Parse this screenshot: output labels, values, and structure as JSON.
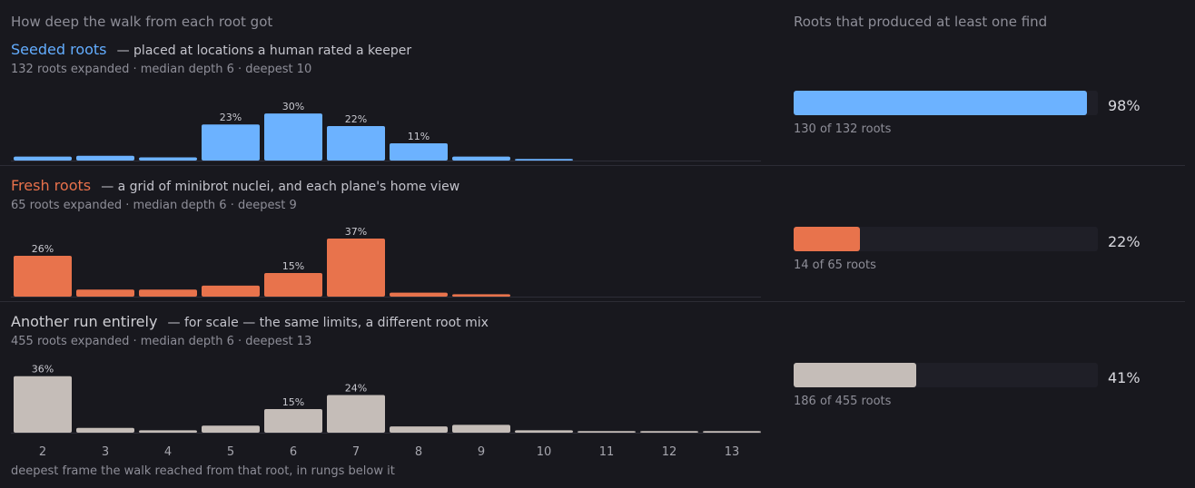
{
  "left_heading": "How deep the walk from each root got",
  "right_heading": "Roots that produced at least one find",
  "rows": [
    {
      "title": "Seeded roots",
      "title_color": "#63adff",
      "desc": "— placed at locations a human rated a keeper",
      "meta": "132 roots expanded · median depth 6 · deepest 10",
      "bar_color": "#6cb2ff",
      "pct_text": "98%",
      "pct_value": 0.98,
      "pct_note": "130 of 132 roots"
    },
    {
      "title": "Fresh roots",
      "title_color": "#e8714b",
      "desc": "— a grid of minibrot nuclei, and each plane's home view",
      "meta": "65 roots expanded · median depth 6 · deepest 9",
      "bar_color": "#e8734c",
      "pct_text": "22%",
      "pct_value": 0.22,
      "pct_note": "14 of 65 roots"
    },
    {
      "title": "Another run entirely",
      "title_color": "#cfcfd4",
      "desc": "— for scale — the same limits, a different root mix",
      "meta": "455 roots expanded · median depth 6 · deepest 13",
      "bar_color": "#c5bdb8",
      "pct_text": "41%",
      "pct_value": 0.41,
      "pct_note": "186 of 455 roots"
    }
  ],
  "chart_data": [
    {
      "type": "bar",
      "title": "Seeded roots",
      "categories": [
        "2",
        "3",
        "4",
        "5",
        "6",
        "7",
        "8",
        "9",
        "10",
        "11",
        "12",
        "13"
      ],
      "values": [
        2.5,
        3,
        2,
        23,
        30,
        22,
        11,
        2.5,
        1,
        0,
        0,
        0
      ],
      "value_labels": [
        "",
        "",
        "",
        "23%",
        "30%",
        "22%",
        "11%",
        "",
        "",
        "",
        "",
        ""
      ],
      "ylim": [
        0,
        37
      ]
    },
    {
      "type": "bar",
      "title": "Fresh roots",
      "categories": [
        "2",
        "3",
        "4",
        "5",
        "6",
        "7",
        "8",
        "9",
        "10",
        "11",
        "12",
        "13"
      ],
      "values": [
        26,
        4.5,
        4.5,
        7,
        15,
        37,
        2.5,
        1.5,
        0,
        0,
        0,
        0
      ],
      "value_labels": [
        "26%",
        "",
        "",
        "",
        "15%",
        "37%",
        "",
        "",
        "",
        "",
        "",
        ""
      ],
      "ylim": [
        0,
        37
      ]
    },
    {
      "type": "bar",
      "title": "Another run entirely",
      "categories": [
        "2",
        "3",
        "4",
        "5",
        "6",
        "7",
        "8",
        "9",
        "10",
        "11",
        "12",
        "13"
      ],
      "values": [
        36,
        3,
        1.5,
        4.5,
        15,
        24,
        4,
        5,
        1.5,
        1,
        1,
        1
      ],
      "value_labels": [
        "36%",
        "",
        "",
        "",
        "15%",
        "24%",
        "",
        "",
        "",
        "",
        "",
        ""
      ],
      "ylim": [
        0,
        37
      ]
    }
  ],
  "x_ticks": [
    "2",
    "3",
    "4",
    "5",
    "6",
    "7",
    "8",
    "9",
    "10",
    "11",
    "12",
    "13"
  ],
  "x_axis_label": "deepest frame the walk reached from that root, in rungs below it"
}
